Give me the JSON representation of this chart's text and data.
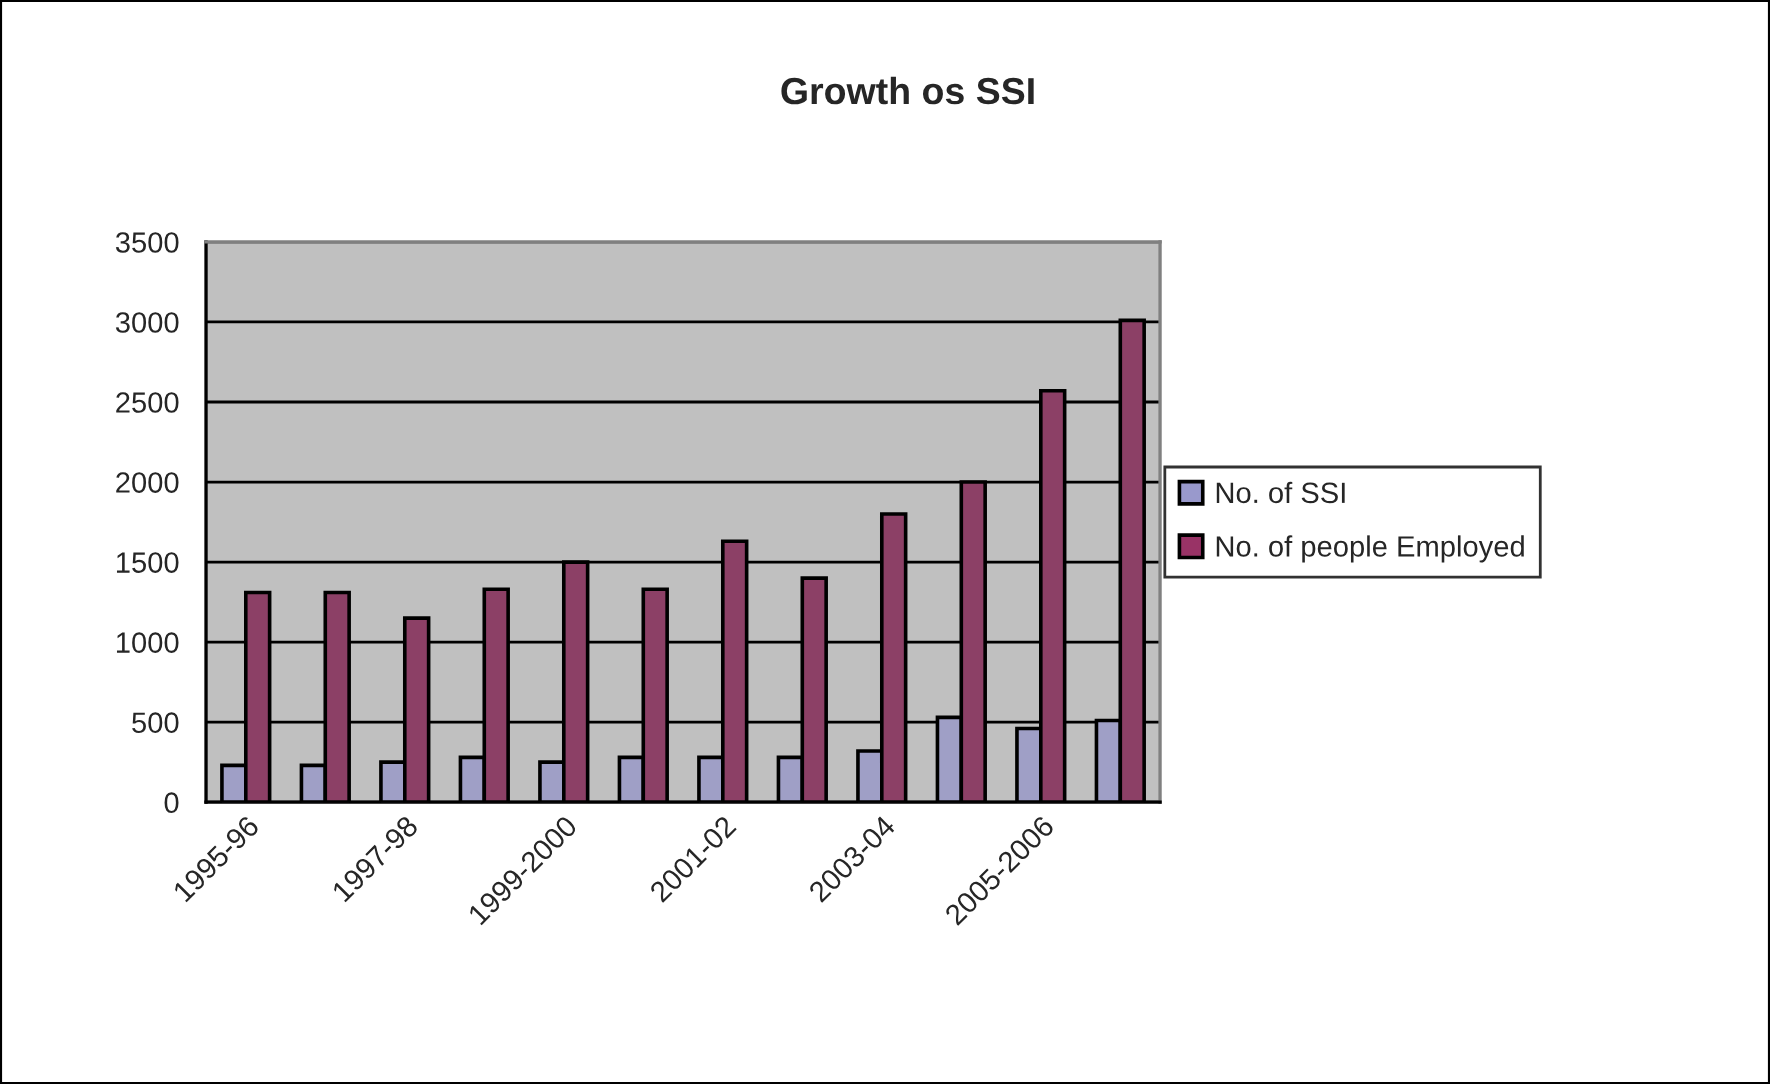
{
  "chart_data": {
    "type": "bar",
    "title": "Growth os SSI",
    "categories": [
      "1995-96",
      null,
      "1997-98",
      null,
      "1999-2000",
      null,
      "2001-02",
      null,
      "2003-04",
      null,
      "2005-2006",
      null
    ],
    "series": [
      {
        "name": "No. of SSI",
        "color": "#9999cc",
        "values": [
          230,
          230,
          250,
          280,
          250,
          280,
          280,
          280,
          320,
          530,
          460,
          510
        ]
      },
      {
        "name": "No. of people Employed",
        "color": "#993366",
        "values": [
          1310,
          1310,
          1150,
          1330,
          1500,
          1330,
          1630,
          1400,
          1800,
          2000,
          2570,
          3010
        ]
      }
    ],
    "ylim": [
      0,
      3500
    ],
    "yticks": [
      0,
      500,
      1000,
      1500,
      2000,
      2500,
      3000,
      3500
    ],
    "grid": "y",
    "legend": "right"
  }
}
